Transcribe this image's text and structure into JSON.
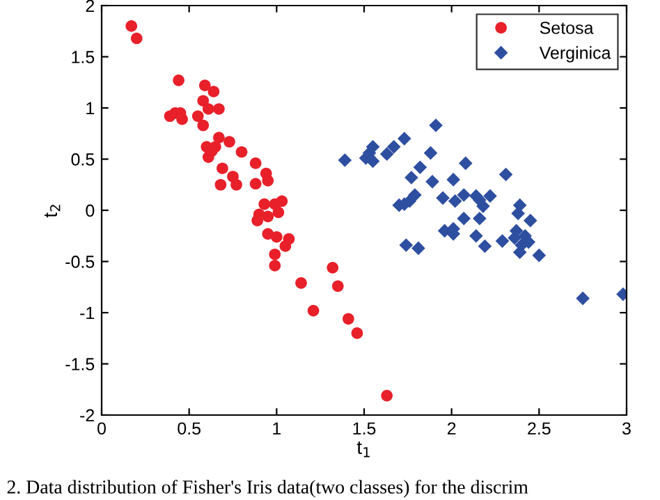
{
  "chart_data": {
    "type": "scatter",
    "xlabel": "t$_{1}$",
    "ylabel": "t$_{2}$",
    "xlim": [
      0,
      3
    ],
    "ylim": [
      -2,
      2
    ],
    "xticks": [
      0,
      0.5,
      1,
      1.5,
      2,
      2.5,
      3
    ],
    "yticks": [
      -2,
      -1.5,
      -1,
      -0.5,
      0,
      0.5,
      1,
      1.5,
      2
    ],
    "grid": false,
    "legend": "top right",
    "annotations": [
      "2. Data distribution of Fisher's Iris data(two classes) for the discrim"
    ],
    "series": [
      {
        "name": "Setosa",
        "color": "#e8202a",
        "marker": "circle",
        "x": [
          0.17,
          0.2,
          0.44,
          0.39,
          0.42,
          0.45,
          0.46,
          0.55,
          0.58,
          0.58,
          0.59,
          0.64,
          0.61,
          0.67,
          0.67,
          0.6,
          0.61,
          0.63,
          0.65,
          0.73,
          0.69,
          0.8,
          0.68,
          0.75,
          0.77,
          0.88,
          0.88,
          0.94,
          0.95,
          0.93,
          0.9,
          0.89,
          0.95,
          0.99,
          1.03,
          1.01,
          0.95,
          1.0,
          1.07,
          1.05,
          0.99,
          0.99,
          1.14,
          1.32,
          1.35,
          1.21,
          1.41,
          1.46,
          1.63
        ],
        "values": [
          1.8,
          1.68,
          1.27,
          0.92,
          0.95,
          0.95,
          0.89,
          0.92,
          0.83,
          1.07,
          1.22,
          1.16,
          0.99,
          0.99,
          0.71,
          0.62,
          0.52,
          0.58,
          0.62,
          0.67,
          0.41,
          0.57,
          0.25,
          0.33,
          0.25,
          0.46,
          0.26,
          0.36,
          0.29,
          0.06,
          -0.04,
          -0.1,
          -0.06,
          0.06,
          0.09,
          -0.02,
          -0.23,
          -0.26,
          -0.28,
          -0.35,
          -0.43,
          -0.54,
          -0.71,
          -0.56,
          -0.74,
          -0.98,
          -1.06,
          -1.2,
          -1.81
        ]
      },
      {
        "name": "Verginica",
        "color": "#2e4fa0",
        "marker": "diamond",
        "x": [
          1.39,
          1.51,
          1.53,
          1.55,
          1.55,
          1.63,
          1.67,
          1.73,
          1.91,
          1.88,
          1.82,
          1.77,
          1.89,
          2.08,
          2.01,
          2.31,
          1.79,
          1.76,
          1.73,
          1.7,
          1.95,
          2.02,
          2.07,
          2.14,
          2.16,
          2.18,
          2.22,
          2.07,
          2.16,
          2.39,
          2.38,
          2.45,
          1.96,
          2.01,
          2.01,
          2.14,
          2.29,
          2.37,
          2.36,
          2.42,
          1.74,
          1.81,
          2.19,
          2.4,
          2.44,
          2.39,
          2.5,
          2.75,
          2.98
        ],
        "values": [
          0.49,
          0.51,
          0.56,
          0.62,
          0.48,
          0.55,
          0.62,
          0.7,
          0.83,
          0.56,
          0.42,
          0.32,
          0.28,
          0.46,
          0.3,
          0.35,
          0.15,
          0.09,
          0.06,
          0.05,
          0.12,
          0.09,
          0.15,
          0.14,
          0.1,
          0.04,
          0.14,
          -0.08,
          -0.08,
          0.05,
          -0.03,
          -0.1,
          -0.2,
          -0.18,
          -0.23,
          -0.25,
          -0.3,
          -0.2,
          -0.27,
          -0.25,
          -0.34,
          -0.37,
          -0.35,
          -0.34,
          -0.31,
          -0.41,
          -0.44,
          -0.86,
          -0.82
        ]
      }
    ]
  }
}
